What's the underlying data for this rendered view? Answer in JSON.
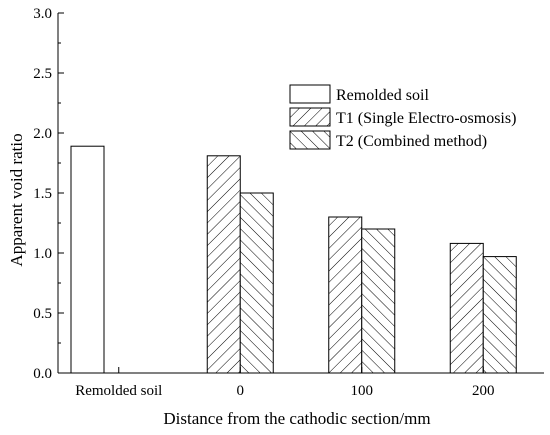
{
  "chart_data": {
    "type": "bar",
    "title": "",
    "xlabel": "Distance from the cathodic section/mm",
    "ylabel": "Apparent void ratio",
    "ylim": [
      0.0,
      3.0
    ],
    "yticks": [
      "0.0",
      "0.5",
      "1.0",
      "1.5",
      "2.0",
      "2.5",
      "3.0"
    ],
    "categories": [
      "Remolded soil",
      "0",
      "100",
      "200"
    ],
    "legend_position": "top-right",
    "grid": false,
    "series": [
      {
        "name": "Remolded soil",
        "pattern": "none",
        "values": [
          1.89,
          null,
          null,
          null
        ]
      },
      {
        "name": "T1 (Single Electro-osmosis)",
        "pattern": "diagonal-up",
        "values": [
          null,
          1.81,
          1.3,
          1.08
        ]
      },
      {
        "name": "T2 (Combined method)",
        "pattern": "diagonal-down",
        "values": [
          null,
          1.5,
          1.2,
          0.97
        ]
      }
    ]
  }
}
